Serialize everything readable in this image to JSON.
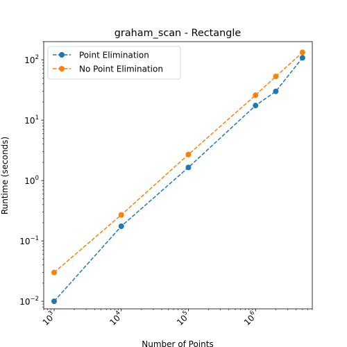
{
  "chart_data": {
    "type": "line",
    "title": "graham_scan - Rectangle",
    "xlabel": "Number of Points",
    "ylabel": "Runtime (seconds)",
    "xscale": "log",
    "yscale": "log",
    "xlim": [
      700,
      7000000
    ],
    "ylim": [
      0.0075,
      200
    ],
    "x_ticks": [
      {
        "value": 1000,
        "base": "10",
        "exp": "3"
      },
      {
        "value": 10000,
        "base": "10",
        "exp": "4"
      },
      {
        "value": 100000,
        "base": "10",
        "exp": "5"
      },
      {
        "value": 1000000,
        "base": "10",
        "exp": "6"
      }
    ],
    "y_ticks": [
      {
        "value": 0.01,
        "base": "10",
        "exp": "−2"
      },
      {
        "value": 0.1,
        "base": "10",
        "exp": "−1"
      },
      {
        "value": 1,
        "base": "10",
        "exp": "0"
      },
      {
        "value": 10,
        "base": "10",
        "exp": "1"
      },
      {
        "value": 100,
        "base": "10",
        "exp": "2"
      }
    ],
    "x_tick_rotation": "45",
    "grid": false,
    "legend_position": "upper-left",
    "x": [
      1000,
      10000,
      100000,
      1000000,
      2000000,
      5000000
    ],
    "series": [
      {
        "name": "Point Elimination",
        "color": "#1f77b4",
        "linestyle": "dashed",
        "marker": "circle",
        "values": [
          0.01,
          0.175,
          1.65,
          17.5,
          30,
          108
        ]
      },
      {
        "name": "No Point Elimination",
        "color": "#ff7f0e",
        "linestyle": "dashed",
        "marker": "circle",
        "values": [
          0.03,
          0.27,
          2.7,
          26,
          53,
          133
        ]
      }
    ]
  }
}
